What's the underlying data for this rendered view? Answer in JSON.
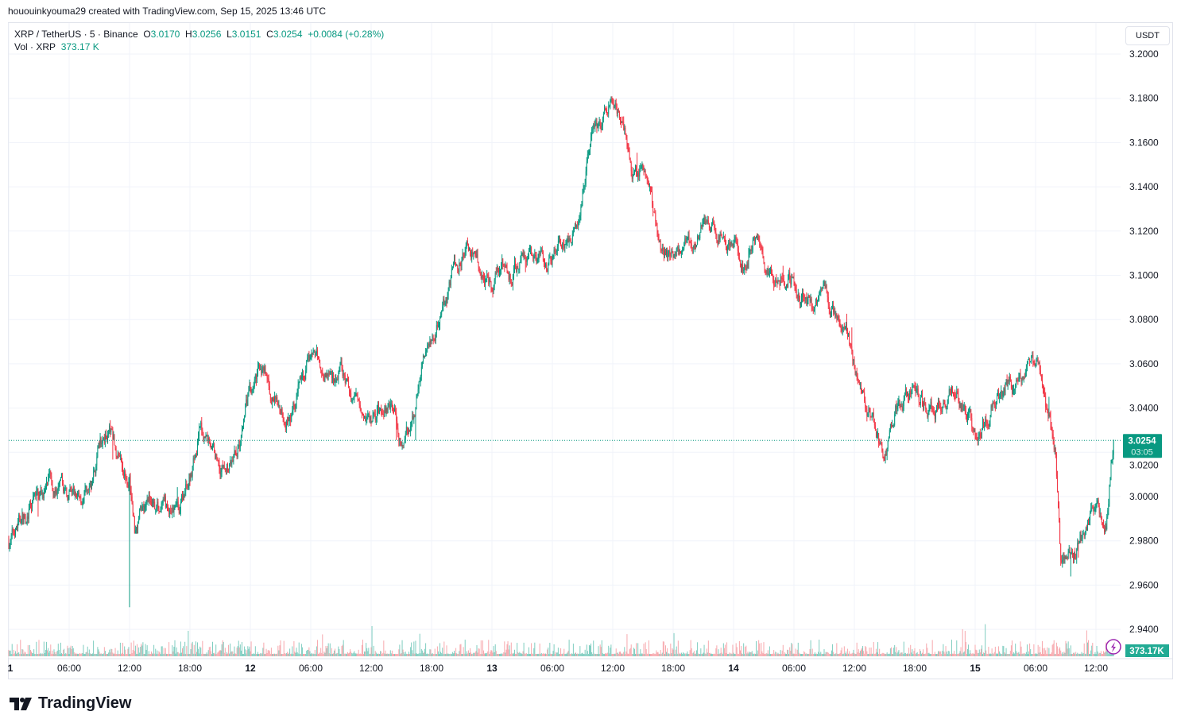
{
  "credit": "hououinkyouma29 created with TradingView.com, Sep 15, 2025 13:46 UTC",
  "legend": {
    "symbol": "XRP / TetherUS · 5 · Binance",
    "o_label": "O",
    "o": "3.0170",
    "h_label": "H",
    "h": "3.0256",
    "l_label": "L",
    "l": "3.0151",
    "c_label": "C",
    "c": "3.0254",
    "change": "+0.0084 (+0.28%)",
    "vol_label": "Vol · XRP",
    "vol": "373.17 K"
  },
  "currency_button": "USDT",
  "brand": "TradingView",
  "colors": {
    "up": "#089981",
    "down": "#f23645",
    "vol_up": "#7fcdc0",
    "vol_down": "#f7a8ad",
    "grid": "#f0f3fa",
    "last_price": "#089981",
    "alert_icon": "#9c27b0"
  },
  "chart_data": {
    "type": "candlestick",
    "title": "",
    "interval": "5",
    "ylim": [
      2.93,
      3.205
    ],
    "grid": true,
    "price_ticks": [
      "3.2000",
      "3.1800",
      "3.1600",
      "3.1400",
      "3.1200",
      "3.1000",
      "3.0800",
      "3.0600",
      "3.0400",
      "3.0200",
      "3.0000",
      "2.9800",
      "2.9600",
      "2.9400"
    ],
    "time_ticks": [
      "1",
      "06:00",
      "12:00",
      "18:00",
      "12",
      "06:00",
      "12:00",
      "18:00",
      "13",
      "06:00",
      "12:00",
      "18:00",
      "14",
      "06:00",
      "12:00",
      "18:00",
      "15",
      "06:00",
      "12:00"
    ],
    "last_price": "3.0254",
    "countdown": "03:05",
    "last_volume": "373.17K",
    "approx_hourly_close": [
      [
        "09-11 00:00",
        2.98
      ],
      [
        "09-11 02:00",
        2.995
      ],
      [
        "09-11 04:00",
        3.005
      ],
      [
        "09-11 06:00",
        3.0
      ],
      [
        "09-11 08:00",
        3.0
      ],
      [
        "09-11 09:00",
        3.02
      ],
      [
        "09-11 10:00",
        3.03
      ],
      [
        "09-11 11:00",
        3.018
      ],
      [
        "09-11 12:00",
        3.01
      ],
      [
        "09-11 12:30",
        2.985
      ],
      [
        "09-11 13:00",
        2.995
      ],
      [
        "09-11 14:00",
        3.0
      ],
      [
        "09-11 15:00",
        2.995
      ],
      [
        "09-11 16:00",
        2.99
      ],
      [
        "09-11 17:00",
        2.995
      ],
      [
        "09-11 18:00",
        3.01
      ],
      [
        "09-11 19:00",
        3.03
      ],
      [
        "09-11 20:00",
        3.025
      ],
      [
        "09-11 21:00",
        3.015
      ],
      [
        "09-11 22:00",
        3.015
      ],
      [
        "09-11 23:00",
        3.025
      ],
      [
        "09-12 00:00",
        3.045
      ],
      [
        "09-12 01:00",
        3.06
      ],
      [
        "09-12 02:00",
        3.045
      ],
      [
        "09-12 03:00",
        3.04
      ],
      [
        "09-12 04:00",
        3.035
      ],
      [
        "09-12 05:00",
        3.055
      ],
      [
        "09-12 06:00",
        3.065
      ],
      [
        "09-12 07:00",
        3.058
      ],
      [
        "09-12 08:00",
        3.055
      ],
      [
        "09-12 09:00",
        3.055
      ],
      [
        "09-12 10:00",
        3.045
      ],
      [
        "09-12 11:00",
        3.045
      ],
      [
        "09-12 12:00",
        3.035
      ],
      [
        "09-12 13:00",
        3.04
      ],
      [
        "09-12 14:00",
        3.045
      ],
      [
        "09-12 15:00",
        3.025
      ],
      [
        "09-12 16:00",
        3.03
      ],
      [
        "09-12 17:00",
        3.06
      ],
      [
        "09-12 18:00",
        3.07
      ],
      [
        "09-12 19:00",
        3.08
      ],
      [
        "09-12 20:00",
        3.1
      ],
      [
        "09-12 21:00",
        3.11
      ],
      [
        "09-12 22:00",
        3.11
      ],
      [
        "09-12 23:00",
        3.1
      ],
      [
        "09-13 00:00",
        3.095
      ],
      [
        "09-13 01:00",
        3.11
      ],
      [
        "09-13 02:00",
        3.1
      ],
      [
        "09-13 03:00",
        3.11
      ],
      [
        "09-13 04:00",
        3.11
      ],
      [
        "09-13 05:00",
        3.105
      ],
      [
        "09-13 06:00",
        3.105
      ],
      [
        "09-13 07:00",
        3.115
      ],
      [
        "09-13 08:00",
        3.12
      ],
      [
        "09-13 09:00",
        3.14
      ],
      [
        "09-13 10:00",
        3.17
      ],
      [
        "09-13 11:00",
        3.17
      ],
      [
        "09-13 12:00",
        3.175
      ],
      [
        "09-13 13:00",
        3.17
      ],
      [
        "09-13 14:00",
        3.145
      ],
      [
        "09-13 15:00",
        3.15
      ],
      [
        "09-13 16:00",
        3.13
      ],
      [
        "09-13 17:00",
        3.11
      ],
      [
        "09-13 18:00",
        3.11
      ],
      [
        "09-13 19:00",
        3.115
      ],
      [
        "09-13 20:00",
        3.115
      ],
      [
        "09-13 21:00",
        3.125
      ],
      [
        "09-13 22:00",
        3.12
      ],
      [
        "09-13 23:00",
        3.115
      ],
      [
        "09-14 00:00",
        3.115
      ],
      [
        "09-14 01:00",
        3.1
      ],
      [
        "09-14 02:00",
        3.12
      ],
      [
        "09-14 03:00",
        3.105
      ],
      [
        "09-14 04:00",
        3.1
      ],
      [
        "09-14 05:00",
        3.1
      ],
      [
        "09-14 06:00",
        3.1
      ],
      [
        "09-14 07:00",
        3.09
      ],
      [
        "09-14 08:00",
        3.085
      ],
      [
        "09-14 09:00",
        3.09
      ],
      [
        "09-14 10:00",
        3.085
      ],
      [
        "09-14 11:00",
        3.08
      ],
      [
        "09-14 12:00",
        3.06
      ],
      [
        "09-14 13:00",
        3.045
      ],
      [
        "09-14 14:00",
        3.035
      ],
      [
        "09-14 15:00",
        3.015
      ],
      [
        "09-14 16:00",
        3.04
      ],
      [
        "09-14 17:00",
        3.045
      ],
      [
        "09-14 18:00",
        3.05
      ],
      [
        "09-14 19:00",
        3.04
      ],
      [
        "09-14 20:00",
        3.04
      ],
      [
        "09-14 21:00",
        3.045
      ],
      [
        "09-14 22:00",
        3.05
      ],
      [
        "09-14 23:00",
        3.04
      ],
      [
        "09-15 00:00",
        3.03
      ],
      [
        "09-15 01:00",
        3.035
      ],
      [
        "09-15 02:00",
        3.045
      ],
      [
        "09-15 03:00",
        3.05
      ],
      [
        "09-15 04:00",
        3.05
      ],
      [
        "09-15 05:00",
        3.055
      ],
      [
        "09-15 06:00",
        3.06
      ],
      [
        "09-15 07:00",
        3.04
      ],
      [
        "09-15 08:00",
        3.02
      ],
      [
        "09-15 08:30",
        2.975
      ],
      [
        "09-15 09:00",
        2.97
      ],
      [
        "09-15 10:00",
        2.975
      ],
      [
        "09-15 11:00",
        2.985
      ],
      [
        "09-15 12:00",
        2.995
      ],
      [
        "09-15 13:00",
        2.99
      ],
      [
        "09-15 13:45",
        3.0254
      ]
    ]
  }
}
